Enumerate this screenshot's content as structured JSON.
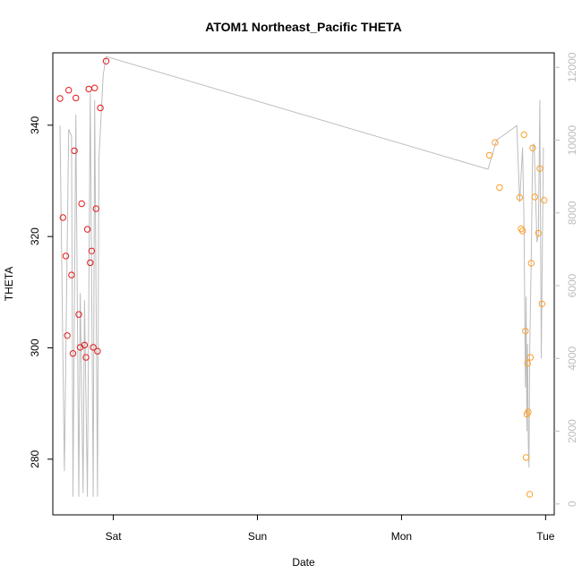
{
  "chart_data": {
    "type": "scatter",
    "title": "ATOM1 Northeast_Pacific THETA",
    "xlabel": "Date",
    "ylabel": "THETA",
    "x_ticks": [
      "Sat",
      "Sun",
      "Mon",
      "Tue"
    ],
    "x_tick_positions": [
      1,
      2,
      3,
      4
    ],
    "xlim": [
      0.58,
      4.06
    ],
    "ylim": [
      270,
      353
    ],
    "y_ticks": [
      280,
      300,
      320,
      340
    ],
    "y2_ticks": [
      0,
      2000,
      4000,
      6000,
      8000,
      10000,
      12000
    ],
    "y2lim": [
      -300,
      12400
    ],
    "grid": false,
    "colors": {
      "group1": "#e41a1c",
      "group2": "#ff9f2a",
      "line": "#bdbdbd",
      "axis": "#000000",
      "right_axis": "#bdbdbd"
    },
    "series": [
      {
        "values": [
          [
            0.63,
            344.8
          ],
          [
            0.65,
            323.4
          ],
          [
            0.67,
            316.5
          ],
          [
            0.68,
            302.2
          ],
          [
            0.69,
            346.3
          ],
          [
            0.71,
            313.1
          ],
          [
            0.72,
            299.0
          ],
          [
            0.73,
            335.4
          ],
          [
            0.74,
            344.9
          ],
          [
            0.76,
            306.0
          ],
          [
            0.77,
            300.1
          ],
          [
            0.78,
            325.9
          ],
          [
            0.8,
            300.5
          ],
          [
            0.81,
            298.3
          ],
          [
            0.82,
            321.3
          ],
          [
            0.83,
            346.5
          ],
          [
            0.84,
            315.3
          ],
          [
            0.85,
            317.4
          ],
          [
            0.86,
            300.1
          ],
          [
            0.87,
            346.7
          ],
          [
            0.88,
            325.0
          ],
          [
            0.89,
            299.4
          ],
          [
            0.91,
            343.1
          ],
          [
            0.95,
            351.5
          ]
        ]
      },
      {
        "values": [
          [
            3.61,
            334.6
          ],
          [
            3.65,
            336.9
          ],
          [
            3.68,
            328.8
          ],
          [
            3.82,
            327.0
          ],
          [
            3.83,
            321.4
          ],
          [
            3.84,
            321.0
          ],
          [
            3.85,
            338.3
          ],
          [
            3.86,
            303.0
          ],
          [
            3.865,
            280.3
          ],
          [
            3.87,
            288.1
          ],
          [
            3.875,
            297.2
          ],
          [
            3.88,
            288.5
          ],
          [
            3.89,
            273.7
          ],
          [
            3.895,
            298.3
          ],
          [
            3.9,
            315.2
          ],
          [
            3.91,
            335.9
          ],
          [
            3.925,
            327.1
          ],
          [
            3.95,
            320.6
          ],
          [
            3.96,
            332.2
          ],
          [
            3.975,
            307.9
          ],
          [
            3.99,
            326.5
          ]
        ]
      }
    ],
    "line_values_y2": [
      [
        0.63,
        10400
      ],
      [
        0.66,
        900
      ],
      [
        0.69,
        10300
      ],
      [
        0.71,
        10100
      ],
      [
        0.72,
        200
      ],
      [
        0.74,
        10700
      ],
      [
        0.76,
        200
      ],
      [
        0.77,
        5800
      ],
      [
        0.79,
        300
      ],
      [
        0.8,
        5600
      ],
      [
        0.82,
        200
      ],
      [
        0.84,
        11300
      ],
      [
        0.86,
        200
      ],
      [
        0.87,
        11100
      ],
      [
        0.89,
        200
      ],
      [
        0.9,
        9500
      ],
      [
        0.93,
        11800
      ],
      [
        0.95,
        12300
      ],
      [
        3.6,
        9200
      ],
      [
        3.66,
        10000
      ],
      [
        3.8,
        10400
      ],
      [
        3.82,
        8300
      ],
      [
        3.84,
        9800
      ],
      [
        3.85,
        7800
      ],
      [
        3.86,
        3200
      ],
      [
        3.865,
        5700
      ],
      [
        3.87,
        2000
      ],
      [
        3.875,
        4400
      ],
      [
        3.88,
        1700
      ],
      [
        3.885,
        1000
      ],
      [
        3.89,
        4200
      ],
      [
        3.9,
        6700
      ],
      [
        3.91,
        9800
      ],
      [
        3.92,
        9900
      ],
      [
        3.94,
        7200
      ],
      [
        3.95,
        7400
      ],
      [
        3.96,
        11100
      ],
      [
        3.97,
        4000
      ],
      [
        3.985,
        9800
      ]
    ]
  }
}
